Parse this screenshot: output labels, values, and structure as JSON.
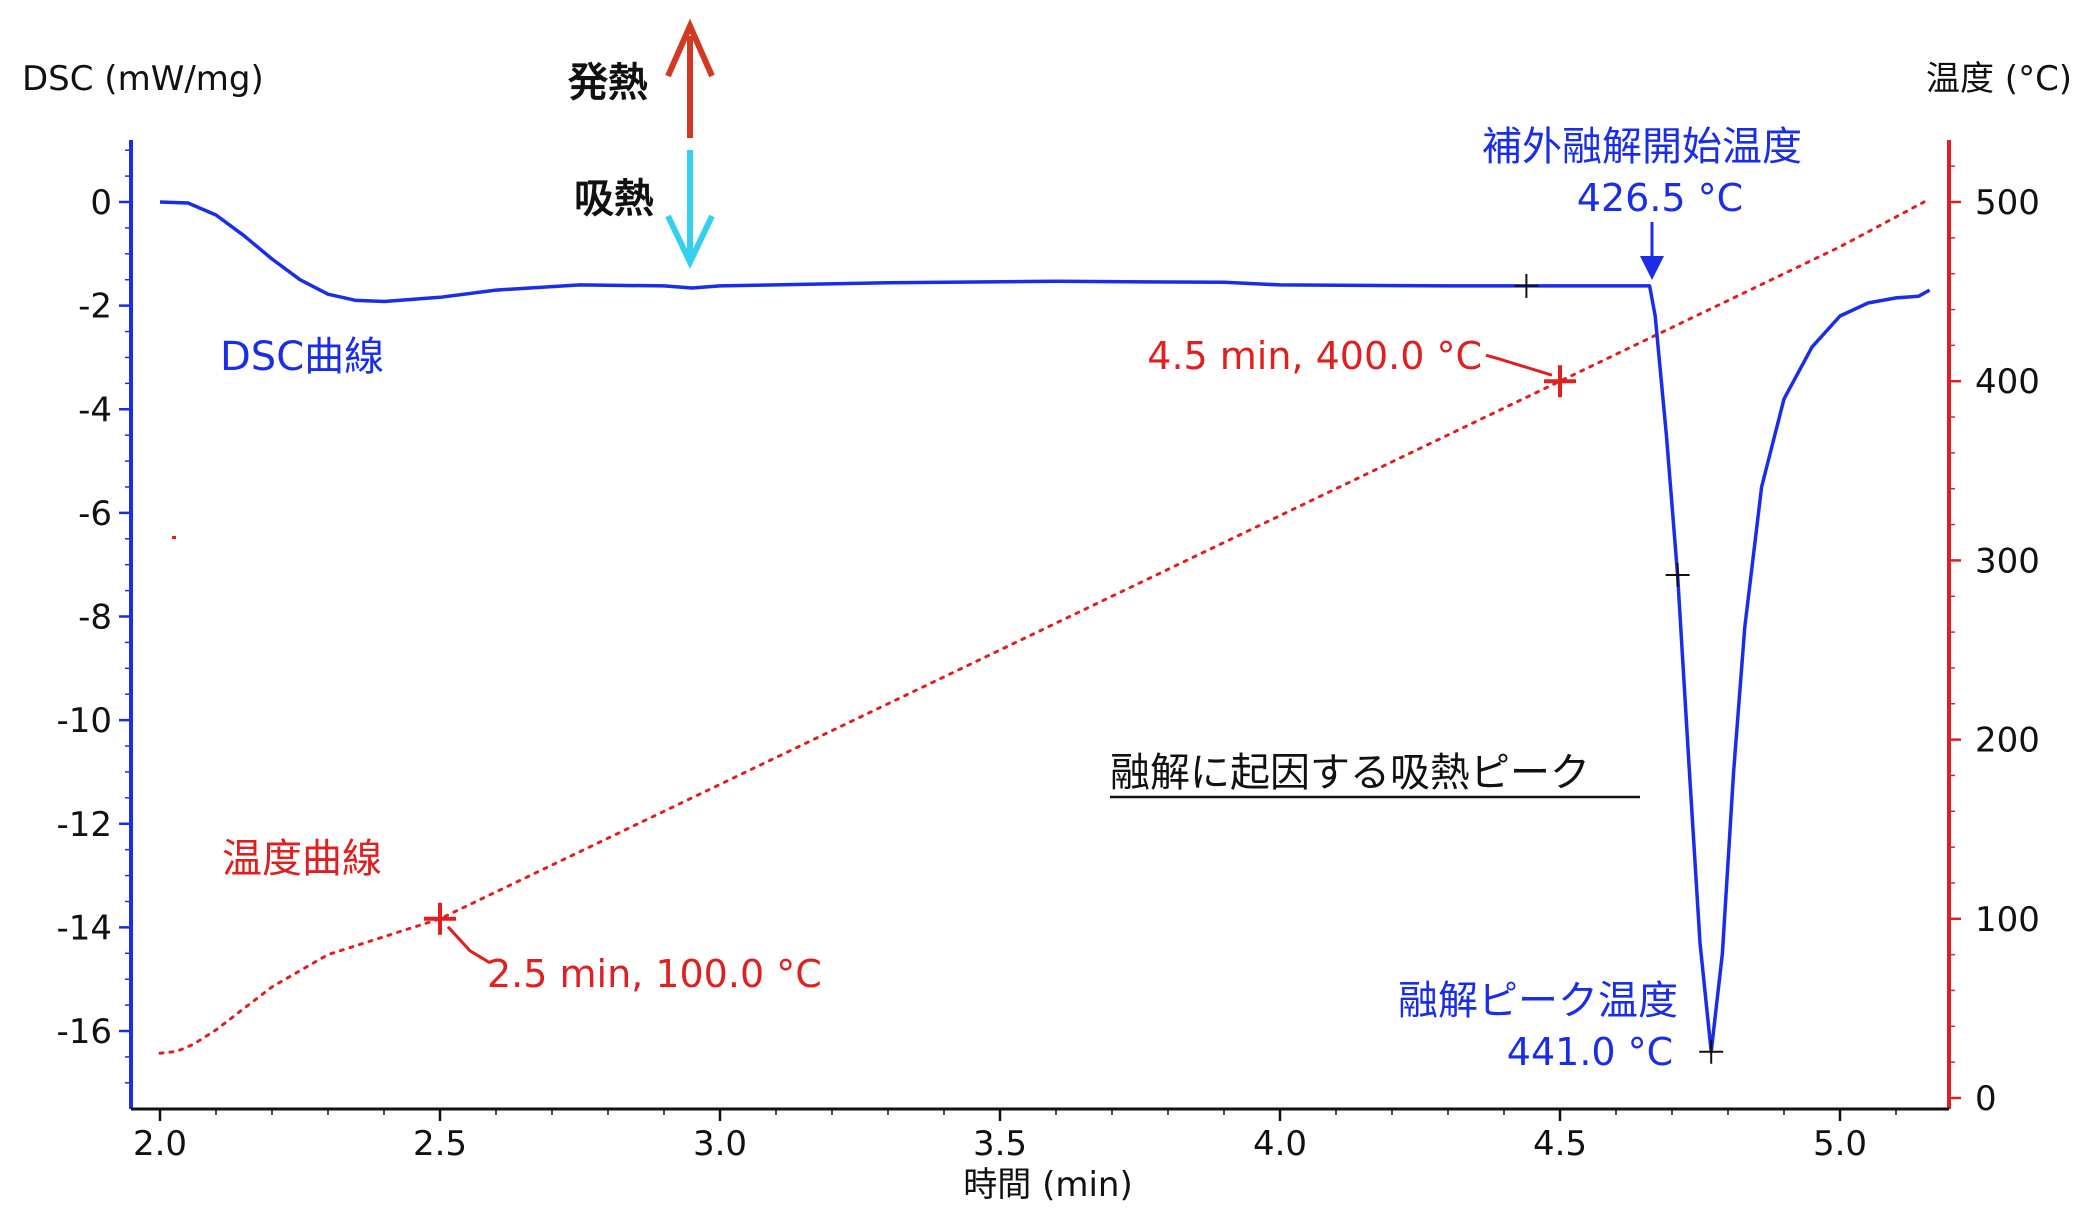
{
  "chart_data": {
    "type": "line",
    "title": "",
    "xlabel": "時間 (min)",
    "ylabel_left": "DSC (mW/mg)",
    "ylabel_right": "温度 (°C)",
    "xlim": [
      1.95,
      5.2
    ],
    "ylim_left": [
      -17.5,
      1.2
    ],
    "ylim_right": [
      -10,
      530
    ],
    "x_ticks": [
      2.0,
      2.5,
      3.0,
      3.5,
      4.0,
      4.5,
      5.0
    ],
    "x_tick_labels": [
      "2.0",
      "2.5",
      "3.0",
      "3.5",
      "4.0",
      "4.5",
      "5.0"
    ],
    "y_left_ticks": [
      0,
      -2,
      -4,
      -6,
      -8,
      -10,
      -12,
      -14,
      -16
    ],
    "y_left_tick_labels": [
      "0",
      "-2",
      "-4",
      "-6",
      "-8",
      "-10",
      "-12",
      "-14",
      "-16"
    ],
    "y_right_ticks": [
      0,
      100,
      200,
      300,
      400,
      500
    ],
    "y_right_tick_labels": [
      "0",
      "100",
      "200",
      "300",
      "400",
      "500"
    ],
    "grid": false,
    "colors": {
      "dsc": "#1a2ee8",
      "temp": "#e02020",
      "exo_arrow": "#d03a22",
      "endo_arrow": "#35d0ee",
      "axis_left": "#1a2ee8",
      "axis_right": "#e02020"
    },
    "series": [
      {
        "name": "DSC曲線",
        "axis": "left",
        "style": "solid",
        "x": [
          2.0,
          2.05,
          2.1,
          2.15,
          2.2,
          2.25,
          2.3,
          2.35,
          2.4,
          2.5,
          2.6,
          2.75,
          2.9,
          2.95,
          3.0,
          3.3,
          3.6,
          3.9,
          4.0,
          4.3,
          4.45,
          4.6,
          4.66,
          4.67,
          4.69,
          4.71,
          4.73,
          4.75,
          4.77,
          4.79,
          4.81,
          4.83,
          4.86,
          4.9,
          4.95,
          5.0,
          5.05,
          5.1,
          5.14,
          5.16
        ],
        "y": [
          0.0,
          -0.02,
          -0.25,
          -0.65,
          -1.1,
          -1.5,
          -1.78,
          -1.9,
          -1.92,
          -1.84,
          -1.7,
          -1.6,
          -1.62,
          -1.66,
          -1.62,
          -1.56,
          -1.53,
          -1.55,
          -1.6,
          -1.62,
          -1.62,
          -1.62,
          -1.62,
          -2.2,
          -4.5,
          -7.2,
          -10.8,
          -14.3,
          -16.4,
          -14.5,
          -11.0,
          -8.2,
          -5.5,
          -3.8,
          -2.8,
          -2.2,
          -1.95,
          -1.85,
          -1.82,
          -1.7
        ]
      },
      {
        "name": "温度曲線",
        "axis": "right",
        "style": "dotted",
        "x": [
          2.0,
          2.03,
          2.06,
          2.1,
          2.15,
          2.2,
          2.3,
          2.5,
          3.0,
          3.5,
          4.0,
          4.5,
          4.68,
          5.0,
          5.15
        ],
        "y": [
          25,
          26,
          30,
          38,
          50,
          62,
          80,
          100,
          175,
          250,
          325,
          400,
          427,
          475,
          500
        ]
      }
    ],
    "markers": [
      {
        "x": 2.5,
        "y_right": 100,
        "label": "2.5 min, 100.0 °C"
      },
      {
        "x": 4.5,
        "y_right": 400,
        "label": "4.5 min, 400.0 °C"
      }
    ],
    "dsc_ticks": [
      {
        "x": 4.44,
        "y": -1.62
      },
      {
        "x": 4.71,
        "y": -7.2
      },
      {
        "x": 4.77,
        "y": -16.4
      }
    ],
    "annotations": {
      "onset_label": "補外融解開始温度",
      "onset_value": "426.5 °C",
      "onset_x": 4.67,
      "peak_label": "融解ピーク温度",
      "peak_value": "441.0 °C",
      "endo_peak_label": "融解に起因する吸熱ピーク",
      "dsc_curve_label": "DSC曲線",
      "temp_curve_label": "温度曲線",
      "exo_label": "発熱",
      "endo_label": "吸熱"
    }
  }
}
